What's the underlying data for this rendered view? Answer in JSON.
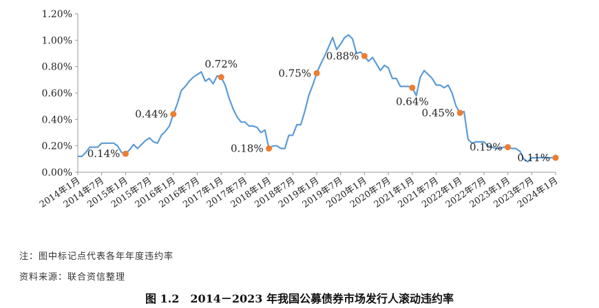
{
  "chart_data": {
    "type": "line",
    "title": "",
    "xlabel": "",
    "ylabel": "",
    "ylim": [
      0,
      1.2
    ],
    "y_ticks": [
      "0.00%",
      "0.20%",
      "0.40%",
      "0.60%",
      "0.80%",
      "1.00%",
      "1.20%"
    ],
    "y_tick_values": [
      0,
      0.2,
      0.4,
      0.6,
      0.8,
      1.0,
      1.2
    ],
    "x_tick_labels": [
      "2014年1月",
      "2014年7月",
      "2015年1月",
      "2015年7月",
      "2016年1月",
      "2016年7月",
      "2017年1月",
      "2017年7月",
      "2018年1月",
      "2018年7月",
      "2019年1月",
      "2019年7月",
      "2020年1月",
      "2020年7月",
      "2021年1月",
      "2021年7月",
      "2022年1月",
      "2022年7月",
      "2023年1月",
      "2023年7月",
      "2024年1月"
    ],
    "x_range": [
      0,
      120
    ],
    "line_color": "#5b9bd5",
    "marker_color": "#ed7d31",
    "grid": false,
    "series": [
      {
        "points": [
          [
            0,
            0.12
          ],
          [
            1,
            0.12
          ],
          [
            2,
            0.15
          ],
          [
            3,
            0.19
          ],
          [
            4,
            0.19
          ],
          [
            5,
            0.19
          ],
          [
            6,
            0.22
          ],
          [
            7,
            0.22
          ],
          [
            8,
            0.22
          ],
          [
            9,
            0.22
          ],
          [
            10,
            0.2
          ],
          [
            11,
            0.15
          ],
          [
            12,
            0.14
          ],
          [
            13,
            0.17
          ],
          [
            14,
            0.21
          ],
          [
            15,
            0.18
          ],
          [
            16,
            0.21
          ],
          [
            17,
            0.24
          ],
          [
            18,
            0.26
          ],
          [
            19,
            0.23
          ],
          [
            20,
            0.22
          ],
          [
            21,
            0.28
          ],
          [
            22,
            0.31
          ],
          [
            23,
            0.35
          ],
          [
            24,
            0.44
          ],
          [
            25,
            0.52
          ],
          [
            26,
            0.62
          ],
          [
            27,
            0.65
          ],
          [
            28,
            0.69
          ],
          [
            29,
            0.72
          ],
          [
            30,
            0.74
          ],
          [
            31,
            0.76
          ],
          [
            32,
            0.69
          ],
          [
            33,
            0.71
          ],
          [
            34,
            0.67
          ],
          [
            35,
            0.73
          ],
          [
            36,
            0.72
          ],
          [
            37,
            0.66
          ],
          [
            38,
            0.56
          ],
          [
            39,
            0.48
          ],
          [
            40,
            0.42
          ],
          [
            41,
            0.38
          ],
          [
            42,
            0.38
          ],
          [
            43,
            0.35
          ],
          [
            44,
            0.35
          ],
          [
            45,
            0.34
          ],
          [
            46,
            0.3
          ],
          [
            47,
            0.32
          ],
          [
            48,
            0.18
          ],
          [
            49,
            0.2
          ],
          [
            50,
            0.2
          ],
          [
            51,
            0.18
          ],
          [
            52,
            0.18
          ],
          [
            53,
            0.28
          ],
          [
            54,
            0.28
          ],
          [
            55,
            0.36
          ],
          [
            56,
            0.36
          ],
          [
            57,
            0.46
          ],
          [
            58,
            0.58
          ],
          [
            59,
            0.66
          ],
          [
            60,
            0.75
          ],
          [
            61,
            0.82
          ],
          [
            62,
            0.88
          ],
          [
            63,
            0.95
          ],
          [
            64,
            1.02
          ],
          [
            65,
            0.93
          ],
          [
            66,
            0.97
          ],
          [
            67,
            1.02
          ],
          [
            68,
            1.04
          ],
          [
            69,
            1.01
          ],
          [
            70,
            0.9
          ],
          [
            71,
            0.91
          ],
          [
            72,
            0.88
          ],
          [
            73,
            0.84
          ],
          [
            74,
            0.87
          ],
          [
            75,
            0.82
          ],
          [
            76,
            0.77
          ],
          [
            77,
            0.81
          ],
          [
            78,
            0.79
          ],
          [
            79,
            0.71
          ],
          [
            80,
            0.71
          ],
          [
            81,
            0.65
          ],
          [
            82,
            0.65
          ],
          [
            83,
            0.65
          ],
          [
            84,
            0.64
          ],
          [
            85,
            0.58
          ],
          [
            86,
            0.72
          ],
          [
            87,
            0.77
          ],
          [
            88,
            0.74
          ],
          [
            89,
            0.71
          ],
          [
            90,
            0.66
          ],
          [
            91,
            0.66
          ],
          [
            92,
            0.64
          ],
          [
            93,
            0.66
          ],
          [
            94,
            0.6
          ],
          [
            95,
            0.5
          ],
          [
            96,
            0.45
          ],
          [
            97,
            0.46
          ],
          [
            98,
            0.25
          ],
          [
            99,
            0.22
          ],
          [
            100,
            0.23
          ],
          [
            101,
            0.23
          ],
          [
            102,
            0.23
          ],
          [
            103,
            0.2
          ],
          [
            104,
            0.19
          ],
          [
            105,
            0.18
          ],
          [
            106,
            0.18
          ],
          [
            107,
            0.19
          ],
          [
            108,
            0.19
          ],
          [
            109,
            0.18
          ],
          [
            110,
            0.18
          ],
          [
            111,
            0.16
          ],
          [
            112,
            0.1
          ],
          [
            113,
            0.08
          ],
          [
            114,
            0.11
          ],
          [
            115,
            0.11
          ],
          [
            116,
            0.11
          ],
          [
            117,
            0.11
          ],
          [
            118,
            0.11
          ],
          [
            119,
            0.11
          ],
          [
            120,
            0.11
          ]
        ]
      }
    ],
    "annotations": [
      {
        "x": 12,
        "y": 0.14,
        "label": "0.14%",
        "side": "left"
      },
      {
        "x": 24,
        "y": 0.44,
        "label": "0.44%",
        "side": "left"
      },
      {
        "x": 36,
        "y": 0.72,
        "label": "0.72%",
        "side": "above"
      },
      {
        "x": 48,
        "y": 0.18,
        "label": "0.18%",
        "side": "left"
      },
      {
        "x": 60,
        "y": 0.75,
        "label": "0.75%",
        "side": "left"
      },
      {
        "x": 72,
        "y": 0.88,
        "label": "0.88%",
        "side": "left"
      },
      {
        "x": 84,
        "y": 0.64,
        "label": "0.64%",
        "side": "below"
      },
      {
        "x": 96,
        "y": 0.45,
        "label": "0.45%",
        "side": "left"
      },
      {
        "x": 108,
        "y": 0.19,
        "label": "0.19%",
        "side": "left"
      },
      {
        "x": 120,
        "y": 0.11,
        "label": "0.11%",
        "side": "left"
      }
    ]
  },
  "note": "注：图中标记点代表各年年度违约率",
  "source": "资料来源：联合资信整理",
  "caption": "图 1.2　2014－2023 年我国公募债券市场发行人滚动违约率"
}
